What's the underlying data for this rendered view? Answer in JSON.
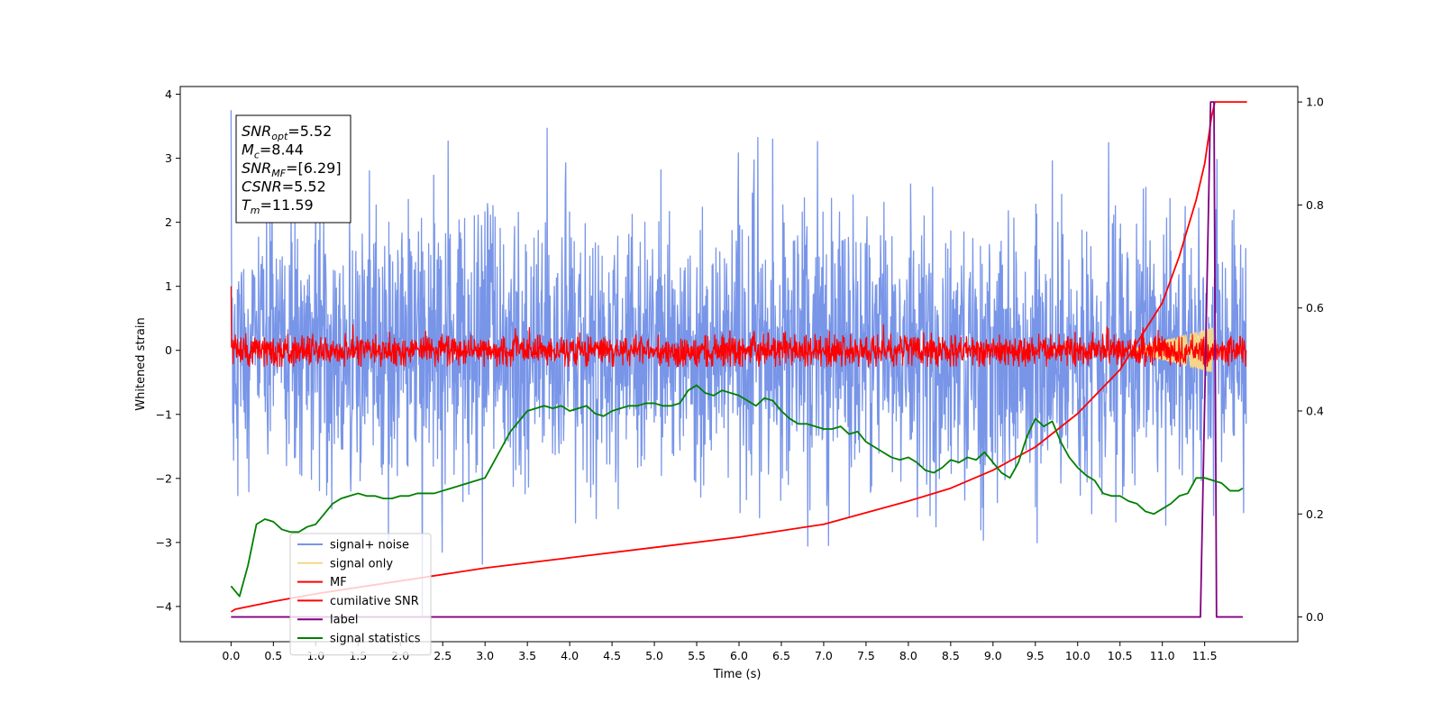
{
  "chart_data": {
    "type": "line",
    "xlabel": "Time (s)",
    "ylabel_left": "Whitened strain",
    "ylabel_right": "",
    "xlim": [
      -0.6,
      12.6
    ],
    "ylim_left": [
      -4.55,
      4.12
    ],
    "ylim_right": [
      -0.048,
      1.03
    ],
    "x_ticks": [
      "0.0",
      "0.5",
      "1.0",
      "1.5",
      "2.0",
      "2.5",
      "3.0",
      "3.5",
      "4.0",
      "4.5",
      "5.0",
      "5.5",
      "6.0",
      "6.5",
      "7.0",
      "7.5",
      "8.0",
      "8.5",
      "9.0",
      "9.5",
      "10.0",
      "10.5",
      "11.0",
      "11.5"
    ],
    "y_ticks_left": [
      "4",
      "3",
      "2",
      "1",
      "0",
      "−1",
      "−2",
      "−3",
      "−4"
    ],
    "y_ticks_right": [
      "1.0",
      "0.8",
      "0.6",
      "0.4",
      "0.2",
      "0.0"
    ],
    "grid": false,
    "legend_position": "lower-left",
    "annotation": {
      "lines": [
        {
          "sym": "SNR",
          "sub": "opt",
          "value": "=5.52"
        },
        {
          "sym": "M",
          "sub": "c",
          "value": "=8.44"
        },
        {
          "sym": "SNR",
          "sub": "MF",
          "value": "=[6.29]"
        },
        {
          "sym": "CSNR",
          "sub": "",
          "value": "=5.52"
        },
        {
          "sym": "T",
          "sub": "m",
          "value": "=11.59"
        }
      ]
    },
    "series": [
      {
        "name": "signal+ noise",
        "color": "#7895e8",
        "axis": "left",
        "kind": "noise",
        "x_range": [
          0.0,
          11.99
        ],
        "mean": 0.0,
        "sigma": 1.05,
        "range": [
          -4.15,
          3.75
        ]
      },
      {
        "name": "signal only",
        "color": "#f5d58a",
        "axis": "left",
        "kind": "chirp",
        "x_range": [
          10.6,
          11.6
        ],
        "amplitude": 0.35
      },
      {
        "name": "MF",
        "color": "#ff0000",
        "axis": "left",
        "kind": "noise",
        "x_range": [
          0.0,
          11.99
        ],
        "mean": 0.0,
        "sigma": 0.12,
        "range": [
          -0.25,
          1.0
        ]
      },
      {
        "name": "cumilative SNR",
        "color": "#ff0000",
        "axis": "right",
        "x": [
          0.0,
          0.05,
          0.5,
          1.0,
          2.0,
          3.0,
          4.0,
          5.0,
          6.0,
          7.0,
          8.0,
          8.5,
          9.0,
          9.5,
          10.0,
          10.5,
          11.0,
          11.2,
          11.4,
          11.5,
          11.58,
          11.62,
          12.0
        ],
        "y": [
          0.01,
          0.015,
          0.03,
          0.045,
          0.07,
          0.095,
          0.115,
          0.135,
          0.155,
          0.18,
          0.225,
          0.25,
          0.285,
          0.33,
          0.395,
          0.48,
          0.61,
          0.7,
          0.81,
          0.88,
          0.97,
          1.0,
          1.0
        ]
      },
      {
        "name": "label",
        "color": "#800080",
        "axis": "right",
        "x": [
          0.0,
          11.45,
          11.57,
          11.61,
          11.64,
          11.65,
          11.95
        ],
        "y": [
          0.0,
          0.0,
          1.0,
          1.0,
          0.0,
          0.0,
          0.0
        ]
      },
      {
        "name": "signal statistics",
        "color": "#008000",
        "axis": "right",
        "x": [
          0.0,
          0.1,
          0.2,
          0.3,
          0.4,
          0.5,
          0.6,
          0.7,
          0.8,
          0.9,
          1.0,
          1.1,
          1.2,
          1.3,
          1.4,
          1.5,
          1.6,
          1.7,
          1.8,
          1.9,
          2.0,
          2.1,
          2.2,
          2.3,
          2.4,
          2.5,
          2.6,
          2.7,
          2.8,
          2.9,
          3.0,
          3.1,
          3.2,
          3.3,
          3.4,
          3.5,
          3.6,
          3.7,
          3.8,
          3.9,
          4.0,
          4.1,
          4.2,
          4.3,
          4.4,
          4.5,
          4.6,
          4.7,
          4.8,
          4.9,
          5.0,
          5.1,
          5.2,
          5.3,
          5.4,
          5.5,
          5.6,
          5.7,
          5.8,
          5.9,
          6.0,
          6.1,
          6.2,
          6.3,
          6.4,
          6.5,
          6.6,
          6.7,
          6.8,
          6.9,
          7.0,
          7.1,
          7.2,
          7.3,
          7.4,
          7.5,
          7.6,
          7.7,
          7.8,
          7.9,
          8.0,
          8.1,
          8.2,
          8.3,
          8.4,
          8.5,
          8.6,
          8.7,
          8.8,
          8.9,
          9.0,
          9.1,
          9.2,
          9.3,
          9.4,
          9.5,
          9.6,
          9.7,
          9.8,
          9.9,
          10.0,
          10.1,
          10.2,
          10.3,
          10.4,
          10.5,
          10.6,
          10.7,
          10.8,
          10.9,
          11.0,
          11.1,
          11.2,
          11.3,
          11.4,
          11.5,
          11.6,
          11.7,
          11.8,
          11.9,
          11.95
        ],
        "y": [
          0.06,
          0.04,
          0.1,
          0.18,
          0.19,
          0.185,
          0.17,
          0.165,
          0.165,
          0.175,
          0.18,
          0.2,
          0.22,
          0.23,
          0.235,
          0.24,
          0.235,
          0.235,
          0.23,
          0.23,
          0.235,
          0.235,
          0.24,
          0.24,
          0.24,
          0.245,
          0.25,
          0.255,
          0.26,
          0.265,
          0.27,
          0.3,
          0.33,
          0.36,
          0.38,
          0.4,
          0.405,
          0.41,
          0.405,
          0.41,
          0.4,
          0.405,
          0.41,
          0.395,
          0.39,
          0.4,
          0.405,
          0.41,
          0.41,
          0.415,
          0.415,
          0.41,
          0.41,
          0.415,
          0.44,
          0.45,
          0.435,
          0.43,
          0.44,
          0.435,
          0.43,
          0.42,
          0.41,
          0.425,
          0.42,
          0.4,
          0.385,
          0.375,
          0.375,
          0.37,
          0.365,
          0.365,
          0.37,
          0.355,
          0.36,
          0.34,
          0.33,
          0.32,
          0.31,
          0.305,
          0.31,
          0.3,
          0.285,
          0.28,
          0.29,
          0.305,
          0.3,
          0.31,
          0.305,
          0.32,
          0.3,
          0.28,
          0.27,
          0.3,
          0.35,
          0.385,
          0.37,
          0.38,
          0.34,
          0.31,
          0.29,
          0.275,
          0.265,
          0.24,
          0.235,
          0.235,
          0.225,
          0.22,
          0.205,
          0.2,
          0.21,
          0.22,
          0.235,
          0.24,
          0.27,
          0.27,
          0.265,
          0.26,
          0.245,
          0.245,
          0.25
        ]
      }
    ]
  }
}
